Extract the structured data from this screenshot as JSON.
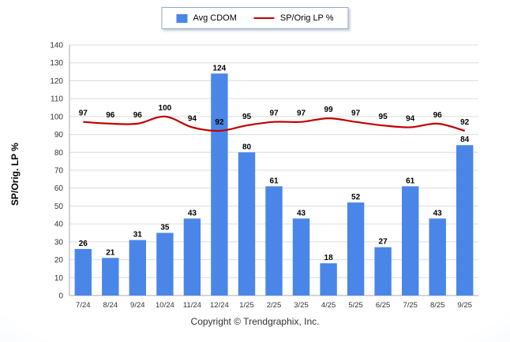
{
  "chart_data": {
    "type": "bar",
    "subtype": "bar-and-line-combo",
    "categories": [
      "7/24",
      "8/24",
      "9/24",
      "10/24",
      "11/24",
      "12/24",
      "1/25",
      "2/25",
      "3/25",
      "4/25",
      "5/25",
      "6/25",
      "7/25",
      "8/25",
      "9/25"
    ],
    "series": [
      {
        "name": "Avg CDOM",
        "type": "bar",
        "color": "#4a86e8",
        "values": [
          26,
          21,
          31,
          35,
          43,
          124,
          80,
          61,
          43,
          18,
          52,
          27,
          61,
          43,
          84
        ]
      },
      {
        "name": "SP/Orig LP %",
        "type": "line",
        "color": "#c00000",
        "values": [
          97,
          96,
          96,
          100,
          94,
          92,
          95,
          97,
          97,
          99,
          97,
          95,
          94,
          96,
          92
        ]
      }
    ],
    "title": "",
    "xlabel": "",
    "ylabel": "SP/Orig. LP %",
    "ylim": [
      0,
      140
    ],
    "ytick_step": 10,
    "yticks": [
      0,
      10,
      20,
      30,
      40,
      50,
      60,
      70,
      80,
      90,
      100,
      110,
      120,
      130,
      140
    ],
    "grid": true,
    "legend_position": "top-center",
    "data_labels": true
  },
  "footer": {
    "copyright": "Copyright © Trendgraphix, Inc."
  },
  "colors": {
    "bar": "#4a86e8",
    "line": "#c00000",
    "gridline": "#dcdcdc",
    "axis": "#aaaaaa",
    "tick_text": "#333333",
    "label_text": "#000000"
  }
}
